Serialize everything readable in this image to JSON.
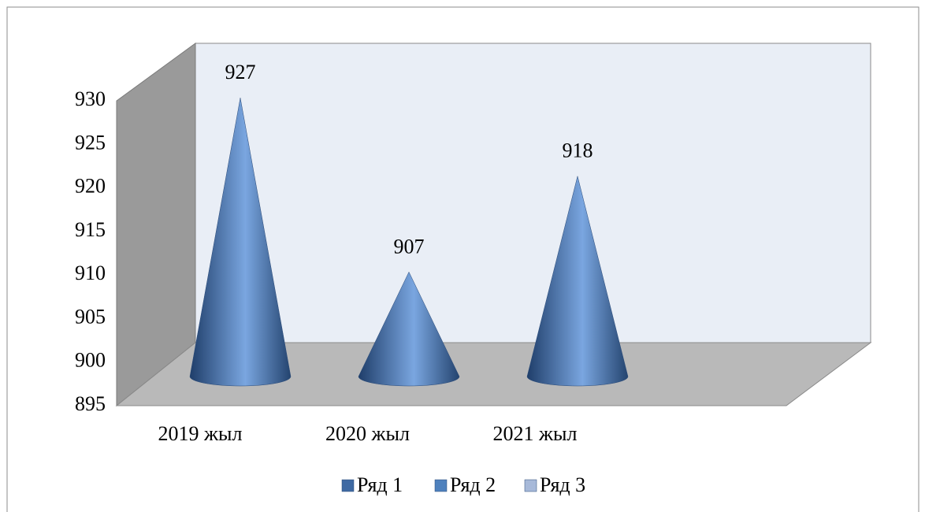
{
  "chart_data": {
    "type": "cone",
    "categories": [
      "2019 жыл",
      "2020 жыл",
      "2021 жыл"
    ],
    "series": [
      {
        "name": "Ряд 1",
        "color": "#3f6aa3",
        "values": [
          927,
          907,
          918
        ]
      },
      {
        "name": "Ряд 2",
        "color": "#4f81bd",
        "values": [
          null,
          null,
          null
        ]
      },
      {
        "name": "Ряд 3",
        "color": "#a7b9d9",
        "values": [
          null,
          null,
          null
        ]
      }
    ],
    "ylim": [
      895,
      930
    ],
    "yticks": [
      895,
      900,
      905,
      910,
      915,
      920,
      925,
      930
    ],
    "grid": false,
    "legend": "bottom"
  }
}
